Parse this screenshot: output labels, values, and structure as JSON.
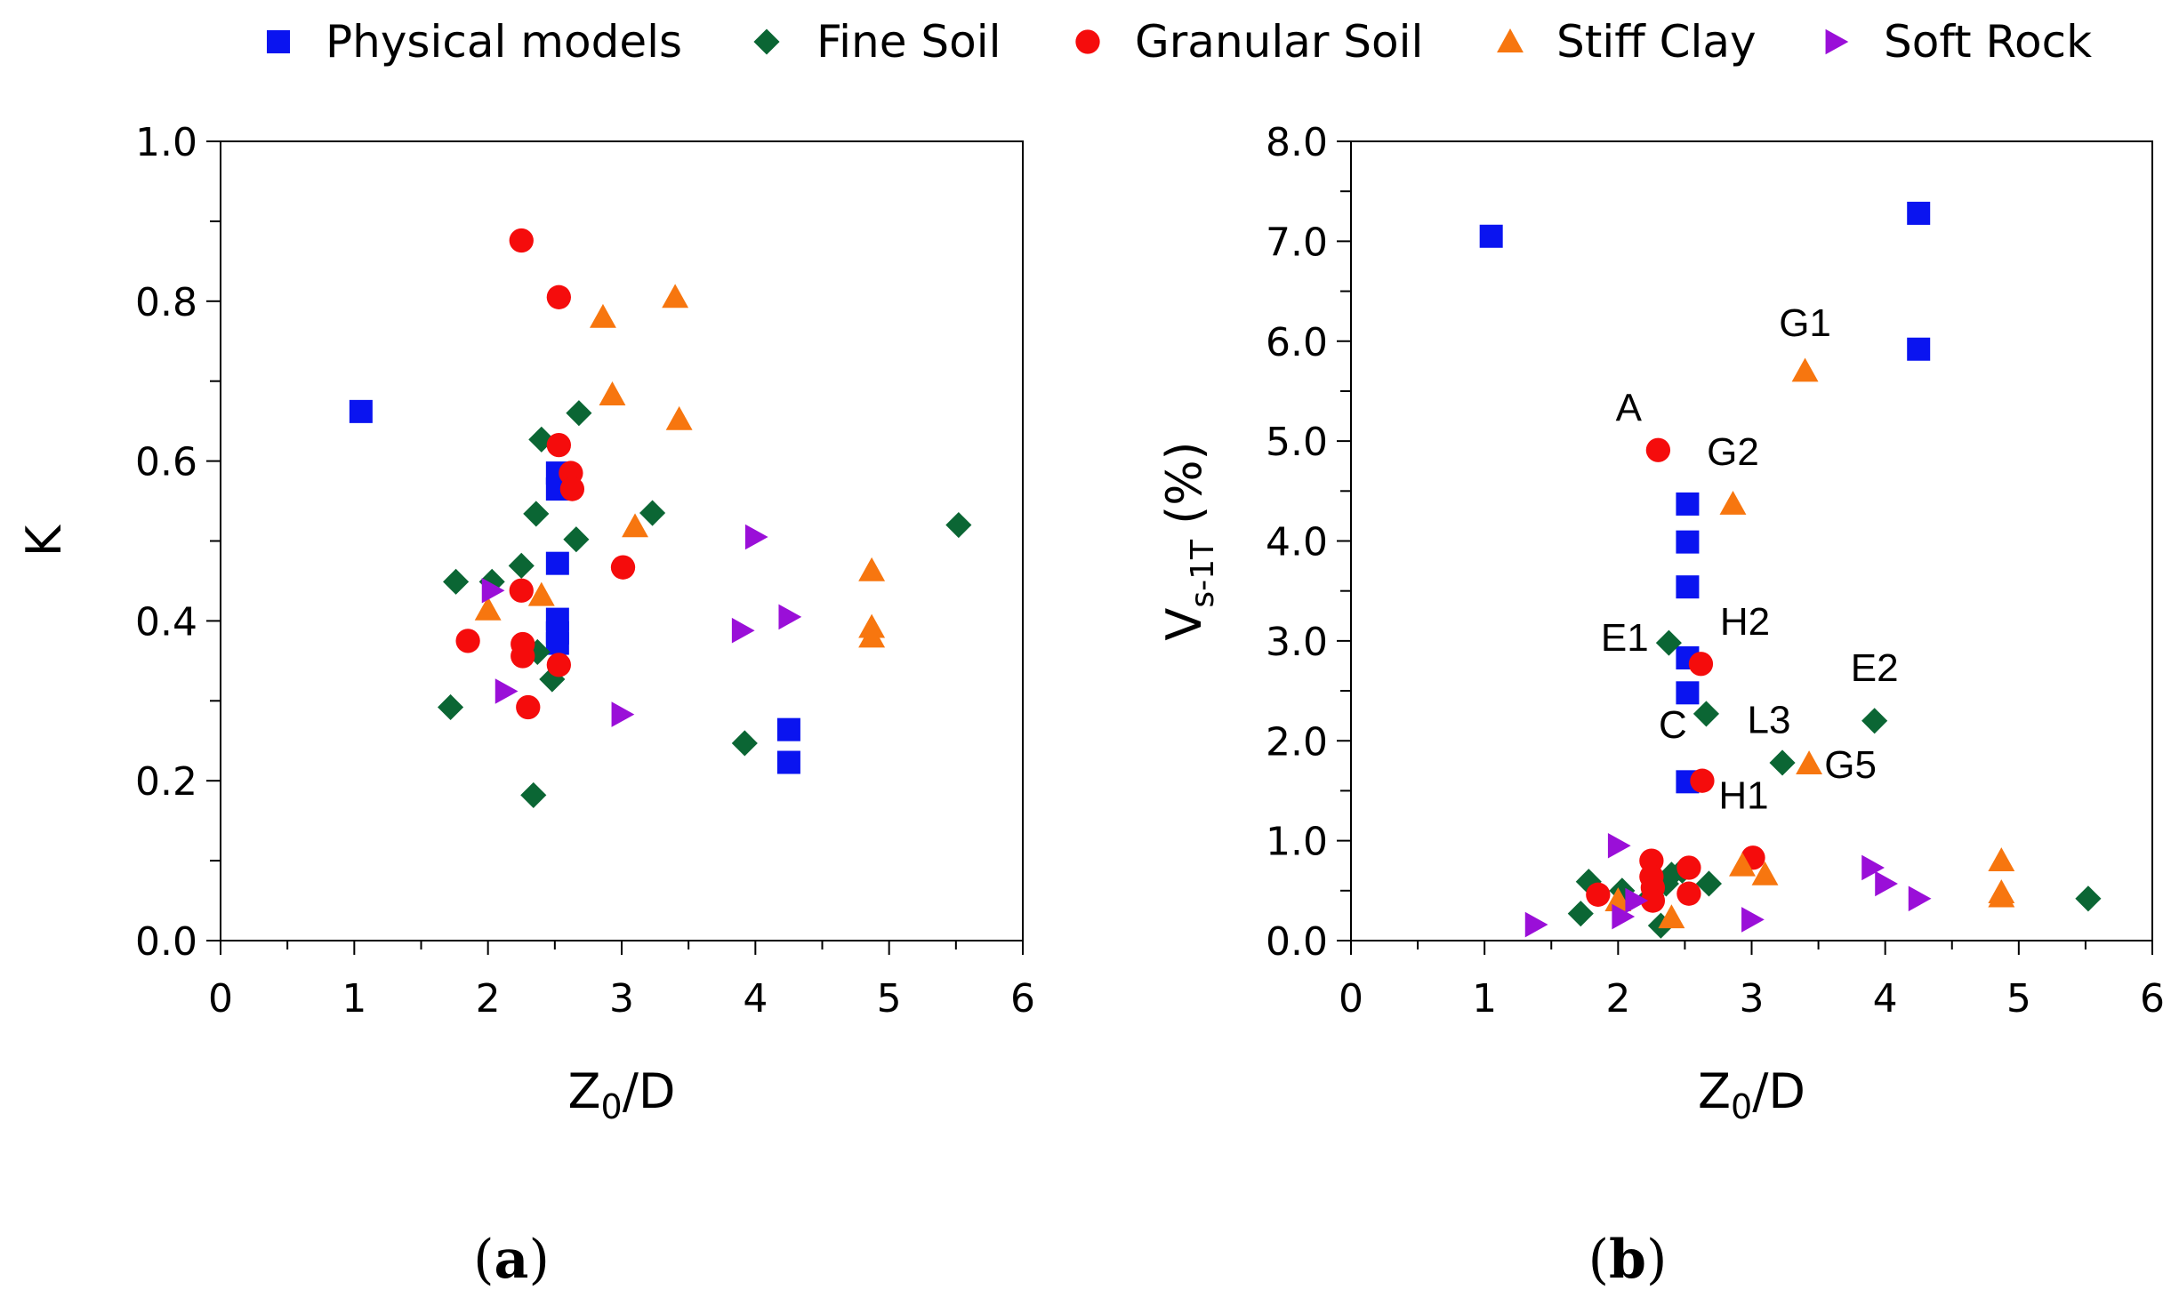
{
  "legend": [
    {
      "name": "Physical models",
      "marker": "square",
      "color": "#0a14f0"
    },
    {
      "name": "Fine Soil",
      "marker": "diamond",
      "color": "#0b6634"
    },
    {
      "name": "Granular Soil",
      "marker": "circle",
      "color": "#f50c0c"
    },
    {
      "name": "Stiff Clay",
      "marker": "triangle-up",
      "color": "#f7760f"
    },
    {
      "name": "Soft Rock",
      "marker": "triangle-right",
      "color": "#9a0fd8"
    }
  ],
  "chart_data": [
    {
      "id": "a",
      "type": "scatter",
      "panel_label_open": "(",
      "panel_label": "a",
      "panel_label_close": ")",
      "xlabel_main": "Z",
      "xlabel_sub": "0",
      "xlabel_rest": "/D",
      "ylabel_main": "K",
      "xlim": [
        0,
        6
      ],
      "ylim": [
        0,
        1
      ],
      "x_ticks": [
        0,
        1,
        2,
        3,
        4,
        5,
        6
      ],
      "x_minor_step": 0.5,
      "y_ticks": [
        0.0,
        0.2,
        0.4,
        0.6,
        0.8,
        1.0
      ],
      "y_minor_step": 0.1,
      "x_tick_labels": [
        "0",
        "1",
        "2",
        "3",
        "4",
        "5",
        "6"
      ],
      "y_tick_labels": [
        "0.0",
        "0.2",
        "0.4",
        "0.6",
        "0.8",
        "1.0"
      ],
      "series": [
        {
          "name": "Physical models",
          "points": [
            [
              1.05,
              0.662
            ],
            [
              2.52,
              0.585
            ],
            [
              2.52,
              0.565
            ],
            [
              2.52,
              0.472
            ],
            [
              2.52,
              0.402
            ],
            [
              2.52,
              0.385
            ],
            [
              2.52,
              0.372
            ],
            [
              4.25,
              0.264
            ],
            [
              4.25,
              0.223
            ]
          ]
        },
        {
          "name": "Fine Soil",
          "points": [
            [
              1.72,
              0.292
            ],
            [
              1.76,
              0.449
            ],
            [
              2.03,
              0.449
            ],
            [
              2.25,
              0.469
            ],
            [
              2.34,
              0.182
            ],
            [
              2.36,
              0.534
            ],
            [
              2.37,
              0.361
            ],
            [
              2.4,
              0.627
            ],
            [
              2.48,
              0.327
            ],
            [
              2.66,
              0.502
            ],
            [
              2.68,
              0.66
            ],
            [
              3.23,
              0.535
            ],
            [
              3.92,
              0.247
            ],
            [
              5.52,
              0.52
            ]
          ]
        },
        {
          "name": "Granular Soil",
          "points": [
            [
              1.85,
              0.375
            ],
            [
              2.25,
              0.876
            ],
            [
              2.25,
              0.438
            ],
            [
              2.26,
              0.371
            ],
            [
              2.26,
              0.356
            ],
            [
              2.3,
              0.292
            ],
            [
              2.53,
              0.805
            ],
            [
              2.53,
              0.62
            ],
            [
              2.53,
              0.345
            ],
            [
              2.62,
              0.585
            ],
            [
              2.63,
              0.565
            ],
            [
              3.01,
              0.467
            ]
          ]
        },
        {
          "name": "Stiff Clay",
          "points": [
            [
              2.0,
              0.414
            ],
            [
              2.4,
              0.432
            ],
            [
              2.86,
              0.78
            ],
            [
              2.93,
              0.683
            ],
            [
              3.1,
              0.518
            ],
            [
              3.4,
              0.805
            ],
            [
              3.43,
              0.652
            ],
            [
              4.87,
              0.463
            ],
            [
              4.87,
              0.392
            ],
            [
              4.87,
              0.38
            ]
          ]
        },
        {
          "name": "Soft Rock",
          "points": [
            [
              2.03,
              0.438
            ],
            [
              2.13,
              0.312
            ],
            [
              3.0,
              0.283
            ],
            [
              3.9,
              0.388
            ],
            [
              4.0,
              0.505
            ],
            [
              4.25,
              0.405
            ]
          ]
        }
      ],
      "annotations": []
    },
    {
      "id": "b",
      "type": "scatter",
      "panel_label_open": "(",
      "panel_label": "b",
      "panel_label_close": ")",
      "xlabel_main": "Z",
      "xlabel_sub": "0",
      "xlabel_rest": "/D",
      "ylabel_main": "V",
      "ylabel_sub": "s-1T",
      "ylabel_rest": " (%)",
      "xlim": [
        0,
        6
      ],
      "ylim": [
        0,
        8
      ],
      "x_ticks": [
        0,
        1,
        2,
        3,
        4,
        5,
        6
      ],
      "x_minor_step": 0.5,
      "y_ticks": [
        0,
        1,
        2,
        3,
        4,
        5,
        6,
        7,
        8
      ],
      "y_minor_step": 0.5,
      "x_tick_labels": [
        "0",
        "1",
        "2",
        "3",
        "4",
        "5",
        "6"
      ],
      "y_tick_labels": [
        "0.0",
        "1.0",
        "2.0",
        "3.0",
        "4.0",
        "5.0",
        "6.0",
        "7.0",
        "8.0"
      ],
      "series": [
        {
          "name": "Physical models",
          "points": [
            [
              1.05,
              7.05
            ],
            [
              2.52,
              4.37
            ],
            [
              2.52,
              3.99
            ],
            [
              2.52,
              3.54
            ],
            [
              2.52,
              2.83
            ],
            [
              2.52,
              2.48
            ],
            [
              2.52,
              1.59
            ],
            [
              4.25,
              7.28
            ],
            [
              4.25,
              5.92
            ]
          ]
        },
        {
          "name": "Fine Soil",
          "points": [
            [
              1.72,
              0.27
            ],
            [
              1.78,
              0.59
            ],
            [
              2.03,
              0.5
            ],
            [
              2.25,
              0.45
            ],
            [
              2.32,
              0.15
            ],
            [
              2.36,
              0.57
            ],
            [
              2.38,
              2.98
            ],
            [
              2.4,
              0.66
            ],
            [
              2.48,
              0.7
            ],
            [
              2.66,
              2.27
            ],
            [
              2.68,
              0.57
            ],
            [
              3.23,
              1.78
            ],
            [
              3.92,
              2.2
            ],
            [
              5.52,
              0.42
            ]
          ]
        },
        {
          "name": "Granular Soil",
          "points": [
            [
              1.85,
              0.46
            ],
            [
              2.25,
              0.8
            ],
            [
              2.25,
              0.64
            ],
            [
              2.26,
              0.53
            ],
            [
              2.26,
              0.4
            ],
            [
              2.3,
              4.91
            ],
            [
              2.53,
              0.73
            ],
            [
              2.53,
              0.47
            ],
            [
              2.62,
              2.77
            ],
            [
              2.63,
              1.6
            ],
            [
              3.01,
              0.83
            ]
          ]
        },
        {
          "name": "Stiff Clay",
          "points": [
            [
              2.0,
              0.4
            ],
            [
              2.4,
              0.23
            ],
            [
              2.86,
              4.37
            ],
            [
              2.93,
              0.75
            ],
            [
              3.1,
              0.66
            ],
            [
              3.4,
              5.7
            ],
            [
              3.43,
              1.77
            ],
            [
              4.87,
              0.8
            ],
            [
              4.87,
              0.48
            ],
            [
              4.87,
              0.44
            ]
          ]
        },
        {
          "name": "Soft Rock",
          "points": [
            [
              1.38,
              0.16
            ],
            [
              2.0,
              0.95
            ],
            [
              2.03,
              0.24
            ],
            [
              2.13,
              0.4
            ],
            [
              3.0,
              0.21
            ],
            [
              3.9,
              0.73
            ],
            [
              4.0,
              0.57
            ],
            [
              4.25,
              0.42
            ]
          ]
        }
      ],
      "annotations": [
        {
          "text": "G1",
          "x": 3.4,
          "y": 6.05
        },
        {
          "text": "A",
          "x": 2.08,
          "y": 5.2
        },
        {
          "text": "G2",
          "x": 2.86,
          "y": 4.76
        },
        {
          "text": "E1",
          "x": 2.05,
          "y": 2.9
        },
        {
          "text": "H2",
          "x": 2.95,
          "y": 3.06
        },
        {
          "text": "E2",
          "x": 3.92,
          "y": 2.6
        },
        {
          "text": "C",
          "x": 2.41,
          "y": 2.03
        },
        {
          "text": "L3",
          "x": 3.13,
          "y": 2.08
        },
        {
          "text": "G5",
          "x": 3.74,
          "y": 1.63
        },
        {
          "text": "H1",
          "x": 2.94,
          "y": 1.32
        }
      ]
    }
  ]
}
